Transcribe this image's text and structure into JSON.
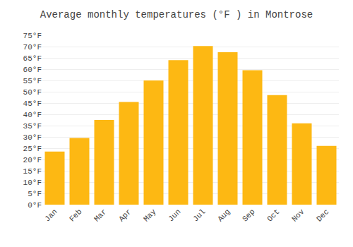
{
  "chart_data": {
    "type": "bar",
    "title": "Average monthly temperatures (°F ) in Montrose",
    "categories": [
      "Jan",
      "Feb",
      "Mar",
      "Apr",
      "May",
      "Jun",
      "Jul",
      "Aug",
      "Sep",
      "Oct",
      "Nov",
      "Dec"
    ],
    "values": [
      23.5,
      29.5,
      37.5,
      45.5,
      55.0,
      64.0,
      70.2,
      67.5,
      59.5,
      48.5,
      36.0,
      26.0
    ],
    "color": "#FDB813",
    "ylim": [
      0,
      75
    ],
    "yticks": [
      {
        "value": 0,
        "label": "0°F"
      },
      {
        "value": 5,
        "label": "5°F"
      },
      {
        "value": 10,
        "label": "10°F"
      },
      {
        "value": 15,
        "label": "15°F"
      },
      {
        "value": 20,
        "label": "20°F"
      },
      {
        "value": 25,
        "label": "25°F"
      },
      {
        "value": 30,
        "label": "30°F"
      },
      {
        "value": 35,
        "label": "35°F"
      },
      {
        "value": 40,
        "label": "40°F"
      },
      {
        "value": 45,
        "label": "45°F"
      },
      {
        "value": 50,
        "label": "50°F"
      },
      {
        "value": 55,
        "label": "55°F"
      },
      {
        "value": 60,
        "label": "60°F"
      },
      {
        "value": 65,
        "label": "65°F"
      },
      {
        "value": 70,
        "label": "70°F"
      },
      {
        "value": 75,
        "label": "75°F"
      }
    ],
    "grid": true
  }
}
